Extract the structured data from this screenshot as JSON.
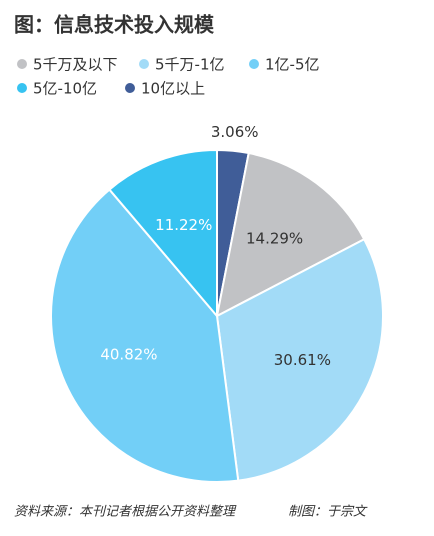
{
  "chart_data": {
    "type": "pie",
    "title": "图：信息技术投入规模",
    "categories": [
      "5千万及以下",
      "5千万-1亿",
      "1亿-5亿",
      "5亿-10亿",
      "10亿以上"
    ],
    "values": [
      14.29,
      30.61,
      40.82,
      11.22,
      3.06
    ],
    "value_labels": [
      "14.29%",
      "30.61%",
      "40.82%",
      "11.22%",
      "3.06%"
    ],
    "colors": [
      "#c1c2c5",
      "#a2dbf7",
      "#72cff7",
      "#37c3f1",
      "#405d98"
    ],
    "source": "资料来源：本刊记者根据公开资料整理",
    "credit": "制图：于宗文"
  }
}
